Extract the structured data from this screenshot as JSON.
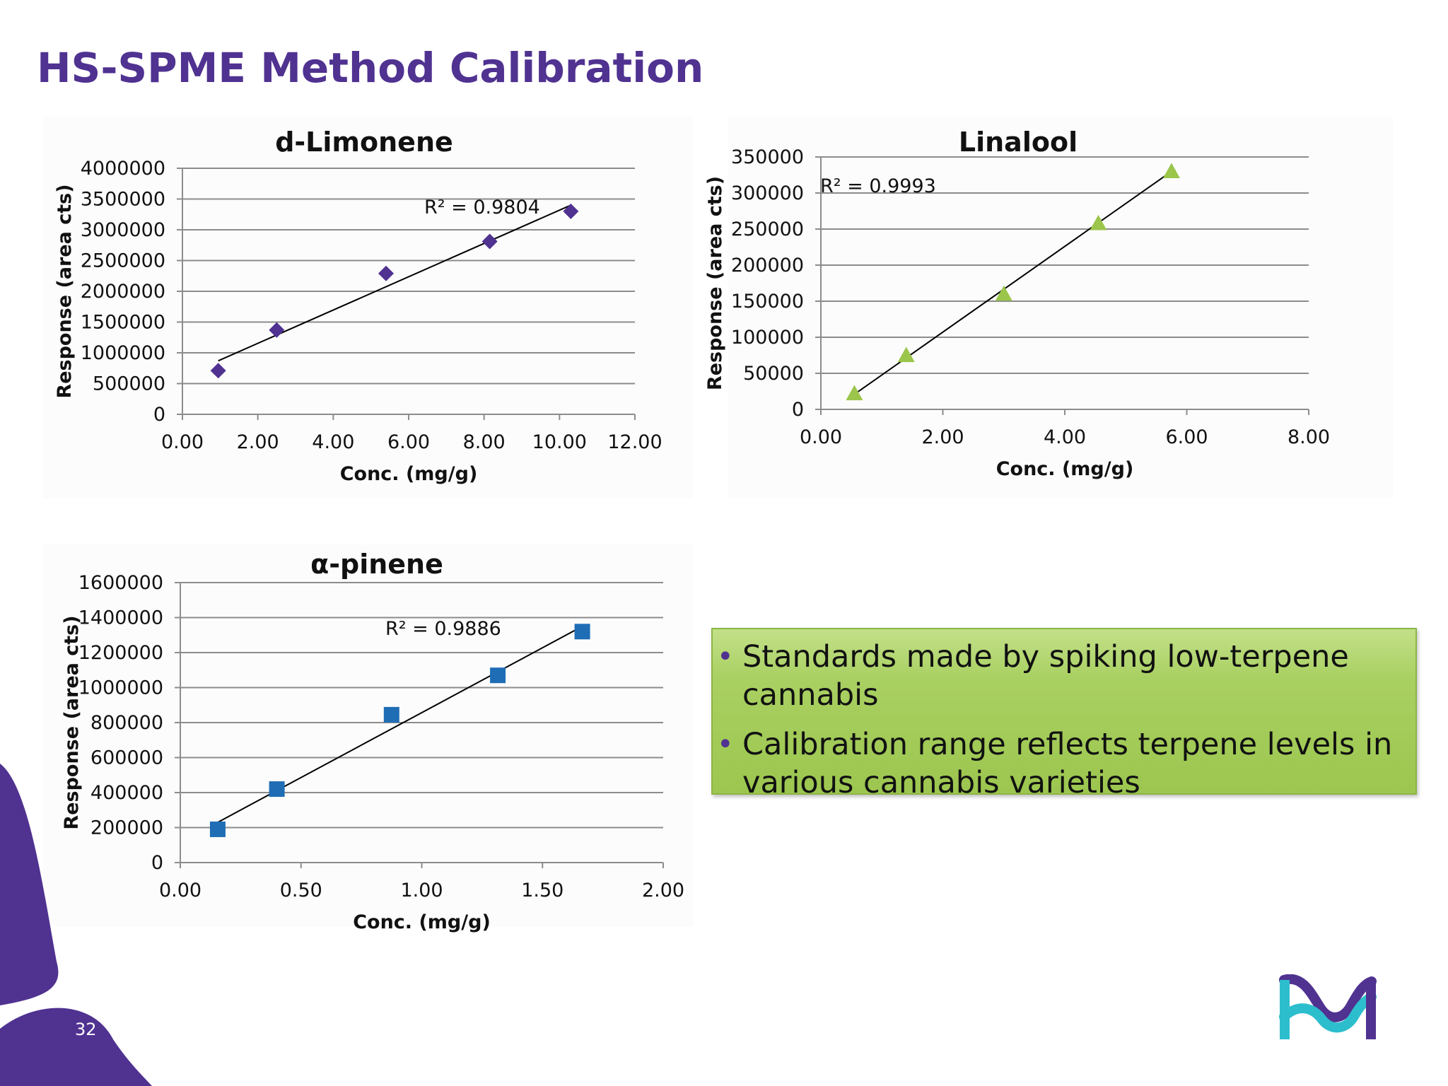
{
  "slide": {
    "title": "HS-SPME Method Calibration",
    "page_number": "32",
    "accent_color": "#503291"
  },
  "bullets": [
    "Standards made by spiking low-terpene cannabis",
    "Calibration range reflects terpene levels in various cannabis varieties"
  ],
  "bullet_box_color": "#a4cc5a",
  "logo": {
    "icon": "m-logo-icon",
    "colors": [
      "#503291",
      "#2dbecd"
    ]
  },
  "chart_data": [
    {
      "id": "limonene",
      "type": "scatter",
      "title": "d-Limonene",
      "xlabel": "Conc. (mg/g)",
      "ylabel": "Response (area cts)",
      "xlim": [
        0,
        12
      ],
      "ylim": [
        0,
        4000000
      ],
      "xticks": [
        "0.00",
        "2.00",
        "4.00",
        "6.00",
        "8.00",
        "10.00",
        "12.00"
      ],
      "yticks": [
        "0",
        "500000",
        "1000000",
        "1500000",
        "2000000",
        "2500000",
        "3000000",
        "3500000",
        "4000000"
      ],
      "marker": "diamond",
      "color": "#503291",
      "x": [
        0.95,
        2.5,
        5.4,
        8.15,
        10.3
      ],
      "y": [
        710000,
        1370000,
        2290000,
        2810000,
        3300000
      ],
      "trendline": {
        "x": [
          0.95,
          10.3
        ],
        "y": [
          870000,
          3400000
        ]
      },
      "r2_label": "R² = 0.9804"
    },
    {
      "id": "linalool",
      "type": "scatter",
      "title": "Linalool",
      "xlabel": "Conc. (mg/g)",
      "ylabel": "Response (area cts)",
      "xlim": [
        0,
        8
      ],
      "ylim": [
        0,
        350000
      ],
      "xticks": [
        "0.00",
        "2.00",
        "4.00",
        "6.00",
        "8.00"
      ],
      "yticks": [
        "0",
        "50000",
        "100000",
        "150000",
        "200000",
        "250000",
        "300000",
        "350000"
      ],
      "marker": "triangle",
      "color": "#9bc54b",
      "x": [
        0.55,
        1.4,
        3.0,
        4.55,
        5.75
      ],
      "y": [
        22000,
        75000,
        160000,
        258000,
        330000
      ],
      "trendline": {
        "x": [
          0.45,
          5.75
        ],
        "y": [
          15000,
          330000
        ]
      },
      "r2_label": "R² = 0.9993"
    },
    {
      "id": "pinene",
      "type": "scatter",
      "title": "α-pinene",
      "xlabel": "Conc. (mg/g)",
      "ylabel": "Response (area cts)",
      "xlim": [
        0,
        2
      ],
      "ylim": [
        0,
        1600000
      ],
      "xticks": [
        "0.00",
        "0.50",
        "1.00",
        "1.50",
        "2.00"
      ],
      "yticks": [
        "0",
        "200000",
        "400000",
        "600000",
        "800000",
        "1000000",
        "1200000",
        "1400000",
        "1600000"
      ],
      "marker": "square",
      "color": "#1f6db5",
      "x": [
        0.155,
        0.4,
        0.875,
        1.315,
        1.665
      ],
      "y": [
        190000,
        420000,
        845000,
        1070000,
        1320000
      ],
      "trendline": {
        "x": [
          0.155,
          1.665
        ],
        "y": [
          230000,
          1350000
        ]
      },
      "r2_label": "R² = 0.9886"
    }
  ]
}
